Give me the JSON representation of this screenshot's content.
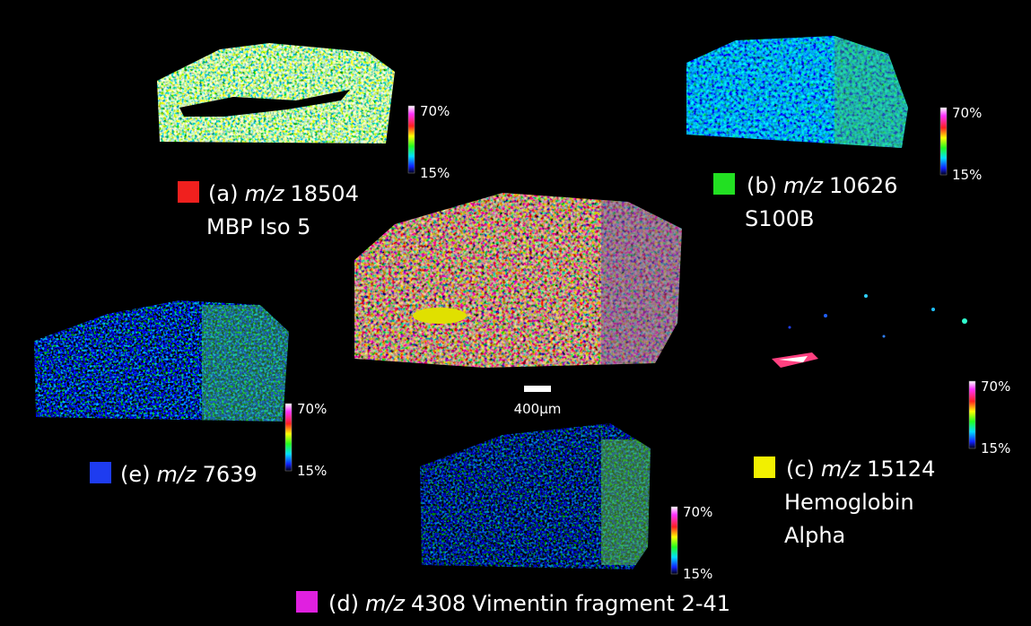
{
  "scale_bar": "400µm",
  "panels": [
    {
      "id": "(a)",
      "mz": "m/z",
      "mass": "18504",
      "name_lines": [
        "MBP Iso 5"
      ],
      "swatch": "#f0201e",
      "colorbar": {
        "max": "70%",
        "min": "15%"
      }
    },
    {
      "id": "(b)",
      "mz": "m/z",
      "mass": "10626",
      "name_lines": [
        "S100B"
      ],
      "swatch": "#22e022",
      "colorbar": {
        "max": "70%",
        "min": "15%"
      }
    },
    {
      "id": "(c)",
      "mz": "m/z",
      "mass": "15124",
      "name_lines": [
        "Hemoglobin",
        "Alpha"
      ],
      "swatch": "#f2f000",
      "colorbar": {
        "max": "70%",
        "min": "15%"
      }
    },
    {
      "id": "(d)",
      "mz": "m/z",
      "mass": "4308",
      "name_lines": [
        "Vimentin fragment 2-41"
      ],
      "swatch": "#e020e0",
      "colorbar": {
        "max": "70%",
        "min": "15%"
      }
    },
    {
      "id": "(e)",
      "mz": "m/z",
      "mass": "7639",
      "name_lines": [],
      "swatch": "#1e3cf0",
      "colorbar": {
        "max": "70%",
        "min": "15%"
      }
    }
  ]
}
